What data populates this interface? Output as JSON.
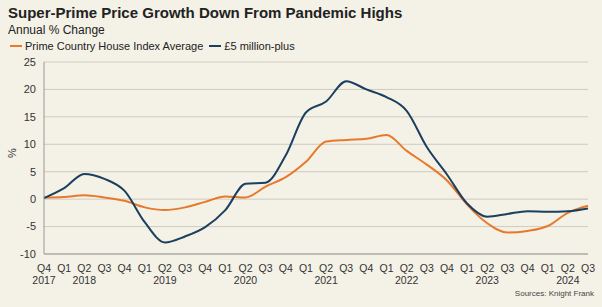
{
  "chart_data": {
    "type": "line",
    "title": "Super-Prime Price Growth Down From Pandemic Highs",
    "subtitle": "Annual % Change",
    "y_label": "%",
    "source": "Sources: Knight Frank",
    "categories": [
      "Q4 2017",
      "Q1",
      "Q2 2018",
      "Q3",
      "Q4",
      "Q1",
      "Q2 2019",
      "Q3",
      "Q4",
      "Q1",
      "Q2 2020",
      "Q3",
      "Q4",
      "Q1",
      "Q2 2021",
      "Q3",
      "Q4",
      "Q1",
      "Q2 2022",
      "Q3",
      "Q4",
      "Q1",
      "Q2 2023",
      "Q3",
      "Q4",
      "Q1",
      "Q2 2024",
      "Q3"
    ],
    "series": [
      {
        "name": "Prime Country House Index Average",
        "color": "#e8792b",
        "values": [
          0.3,
          0.4,
          0.7,
          0.3,
          -0.3,
          -1.5,
          -2,
          -1.5,
          -0.5,
          0.5,
          0.3,
          2.3,
          4,
          6.8,
          10.5,
          10.8,
          11,
          11.7,
          8.8,
          6.3,
          3.4,
          -1,
          -4.4,
          -6.1,
          -5.8,
          -4.9,
          -2.5,
          -1.2
        ]
      },
      {
        "name": "£5 million-plus",
        "color": "#1b3f5e",
        "values": [
          0.2,
          2,
          4.6,
          3.7,
          1.5,
          -4.2,
          -7.9,
          -6.8,
          -5.1,
          -2,
          2.8,
          3,
          8,
          15.8,
          17.8,
          21.5,
          20,
          18.6,
          16.1,
          9.5,
          4.5,
          -0.8,
          -3.2,
          -2.7,
          -2.2,
          -2.3,
          -2.2,
          -1.7
        ]
      }
    ],
    "ylim": [
      -10,
      25
    ],
    "yticks": [
      -10,
      -5,
      0,
      5,
      10,
      15,
      20,
      25
    ],
    "grid": true,
    "legend": "upper left"
  }
}
